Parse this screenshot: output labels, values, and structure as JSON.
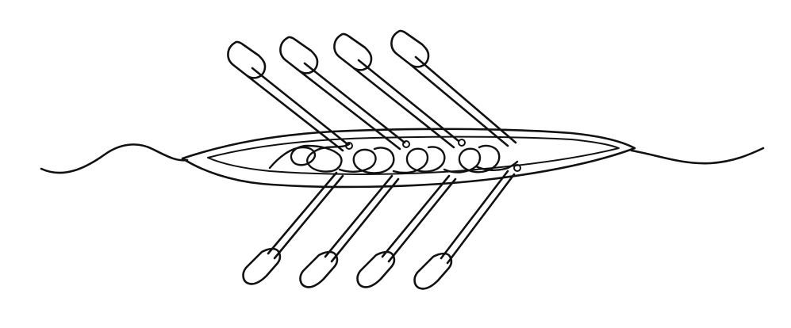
{
  "image": {
    "background_color": "#ffffff",
    "ink_color": "#111111",
    "rowers_visible": 4,
    "oars_top_row": 4,
    "oars_bottom_row": 4
  }
}
